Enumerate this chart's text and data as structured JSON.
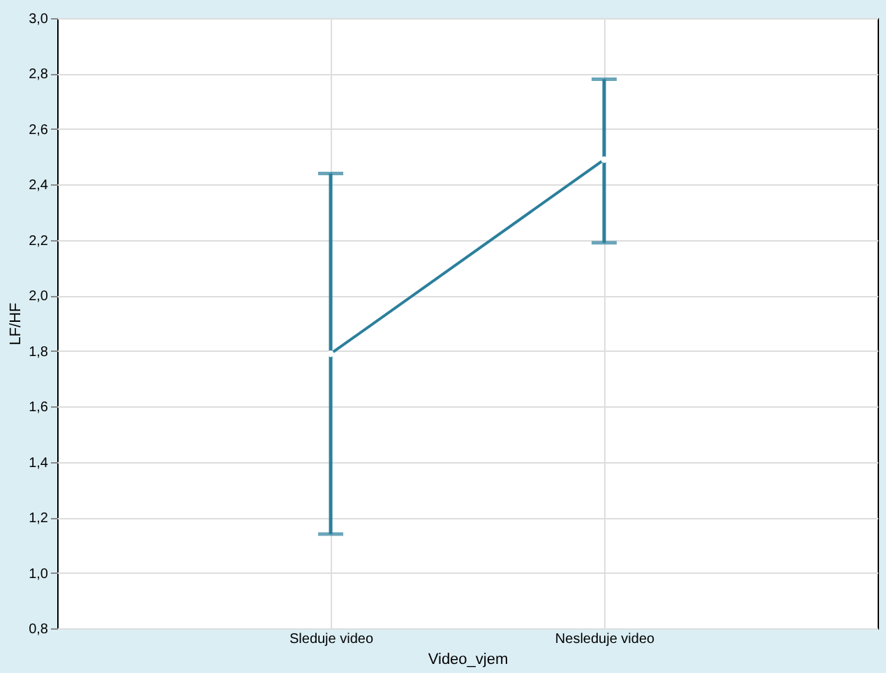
{
  "chart_data": {
    "type": "line",
    "xlabel": "Video_vjem",
    "ylabel": "LF/HF",
    "categories": [
      "Sleduje video",
      "Nesleduje video"
    ],
    "series": [
      {
        "color": "#2b7f9c",
        "values": [
          1.79,
          2.49
        ],
        "errors": [
          [
            1.14,
            2.44
          ],
          [
            2.19,
            2.78
          ]
        ]
      }
    ],
    "ylim": [
      0.8,
      3.0
    ],
    "yticks": [
      {
        "value": 0.8,
        "label": "0,8"
      },
      {
        "value": 1.0,
        "label": "1,0"
      },
      {
        "value": 1.2,
        "label": "1,2"
      },
      {
        "value": 1.4,
        "label": "1,4"
      },
      {
        "value": 1.6,
        "label": "1,6"
      },
      {
        "value": 1.8,
        "label": "1,8"
      },
      {
        "value": 2.0,
        "label": "2,0"
      },
      {
        "value": 2.2,
        "label": "2,2"
      },
      {
        "value": 2.4,
        "label": "2,4"
      },
      {
        "value": 2.6,
        "label": "2,6"
      },
      {
        "value": 2.8,
        "label": "2,8"
      },
      {
        "value": 3.0,
        "label": "3,0"
      }
    ],
    "grid": true,
    "marker": "circle"
  }
}
